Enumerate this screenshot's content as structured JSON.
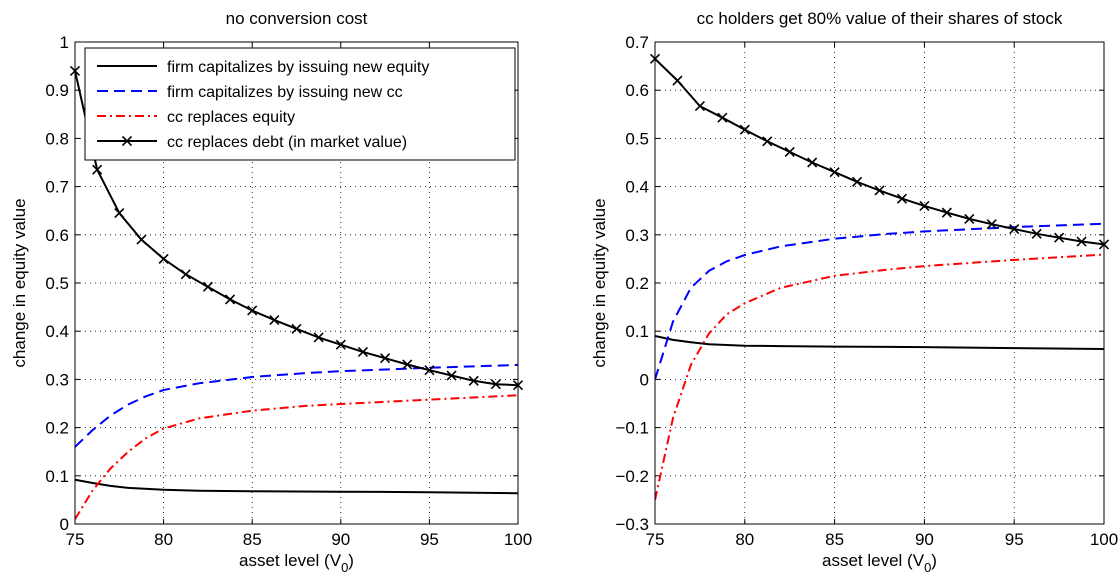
{
  "chart_data": [
    {
      "type": "line",
      "title": "no conversion cost",
      "xlabel": "asset level (V",
      "xlabel_sub": "0",
      "xlabel_close": ")",
      "ylabel": "change in equity value",
      "xlim": [
        75,
        100
      ],
      "ylim": [
        0,
        1
      ],
      "xticks": [
        "75",
        "80",
        "85",
        "90",
        "95",
        "100"
      ],
      "yticks": [
        "0",
        "0.1",
        "0.2",
        "0.3",
        "0.4",
        "0.5",
        "0.6",
        "0.7",
        "0.8",
        "0.9",
        "1"
      ],
      "grid": true,
      "legend_position": "top-right",
      "series": [
        {
          "name": "firm capitalizes by issuing new equity",
          "color": "#000000",
          "style": "solid",
          "marker": "none",
          "x": [
            75,
            76,
            77,
            78,
            80,
            82,
            85,
            90,
            95,
            100
          ],
          "y": [
            0.092,
            0.085,
            0.079,
            0.075,
            0.071,
            0.069,
            0.068,
            0.067,
            0.066,
            0.064
          ]
        },
        {
          "name": "firm capitalizes by issuing new cc",
          "color": "#0000ff",
          "style": "dashed",
          "marker": "none",
          "x": [
            75,
            76,
            77,
            78,
            79,
            80,
            82,
            85,
            88,
            90,
            95,
            100
          ],
          "y": [
            0.16,
            0.195,
            0.225,
            0.248,
            0.265,
            0.278,
            0.292,
            0.305,
            0.313,
            0.317,
            0.324,
            0.33
          ]
        },
        {
          "name": "cc replaces equity",
          "color": "#ff0000",
          "style": "dashdot",
          "marker": "none",
          "x": [
            75,
            76,
            77,
            78,
            79,
            80,
            82,
            85,
            88,
            90,
            95,
            100
          ],
          "y": [
            0.01,
            0.07,
            0.115,
            0.15,
            0.178,
            0.198,
            0.219,
            0.235,
            0.245,
            0.249,
            0.258,
            0.267
          ]
        },
        {
          "name": "cc replaces debt (in market value)",
          "color": "#000000",
          "style": "solid",
          "marker": "x",
          "x": [
            75,
            76.25,
            77.5,
            78.75,
            80,
            81.25,
            82.5,
            83.75,
            85,
            86.25,
            87.5,
            88.75,
            90,
            91.25,
            92.5,
            93.75,
            95,
            96.25,
            97.5,
            98.75,
            100
          ],
          "y": [
            0.94,
            0.735,
            0.645,
            0.59,
            0.55,
            0.518,
            0.492,
            0.466,
            0.443,
            0.423,
            0.405,
            0.387,
            0.372,
            0.357,
            0.344,
            0.331,
            0.319,
            0.308,
            0.297,
            0.29,
            0.288
          ]
        }
      ]
    },
    {
      "type": "line",
      "title": "cc holders get 80% value of their shares of stock",
      "xlabel": "asset level (V",
      "xlabel_sub": "0",
      "xlabel_close": ")",
      "ylabel": "change in equity value",
      "xlim": [
        75,
        100
      ],
      "ylim": [
        -0.3,
        0.7
      ],
      "xticks": [
        "75",
        "80",
        "85",
        "90",
        "95",
        "100"
      ],
      "yticks": [
        "−0.3",
        "−0.2",
        "−0.1",
        "0",
        "0.1",
        "0.2",
        "0.3",
        "0.4",
        "0.5",
        "0.6",
        "0.7"
      ],
      "grid": true,
      "series": [
        {
          "name": "firm capitalizes by issuing new equity",
          "color": "#000000",
          "style": "solid",
          "marker": "none",
          "x": [
            75,
            76,
            77,
            78,
            80,
            82,
            85,
            90,
            95,
            100
          ],
          "y": [
            0.09,
            0.082,
            0.077,
            0.073,
            0.07,
            0.069,
            0.068,
            0.067,
            0.065,
            0.063
          ]
        },
        {
          "name": "firm capitalizes by issuing new cc",
          "color": "#0000ff",
          "style": "dashed",
          "marker": "none",
          "x": [
            75,
            76,
            77,
            78,
            79,
            80,
            82,
            85,
            88,
            90,
            95,
            100
          ],
          "y": [
            0.0,
            0.12,
            0.19,
            0.225,
            0.245,
            0.258,
            0.276,
            0.292,
            0.302,
            0.307,
            0.316,
            0.323
          ]
        },
        {
          "name": "cc replaces equity",
          "color": "#ff0000",
          "style": "dashdot",
          "marker": "none",
          "x": [
            75,
            76,
            77,
            78,
            79,
            80,
            82,
            85,
            88,
            90,
            95,
            100
          ],
          "y": [
            -0.25,
            -0.08,
            0.03,
            0.095,
            0.135,
            0.158,
            0.19,
            0.215,
            0.228,
            0.235,
            0.248,
            0.259
          ]
        },
        {
          "name": "cc replaces debt (in market value)",
          "color": "#000000",
          "style": "solid",
          "marker": "x",
          "x": [
            75,
            76.25,
            77.5,
            78.75,
            80,
            81.25,
            82.5,
            83.75,
            85,
            86.25,
            87.5,
            88.75,
            90,
            91.25,
            92.5,
            93.75,
            95,
            96.25,
            97.5,
            98.75,
            100
          ],
          "y": [
            0.665,
            0.62,
            0.567,
            0.543,
            0.518,
            0.494,
            0.472,
            0.45,
            0.43,
            0.41,
            0.392,
            0.375,
            0.36,
            0.346,
            0.333,
            0.322,
            0.312,
            0.302,
            0.294,
            0.286,
            0.28
          ]
        }
      ]
    }
  ]
}
